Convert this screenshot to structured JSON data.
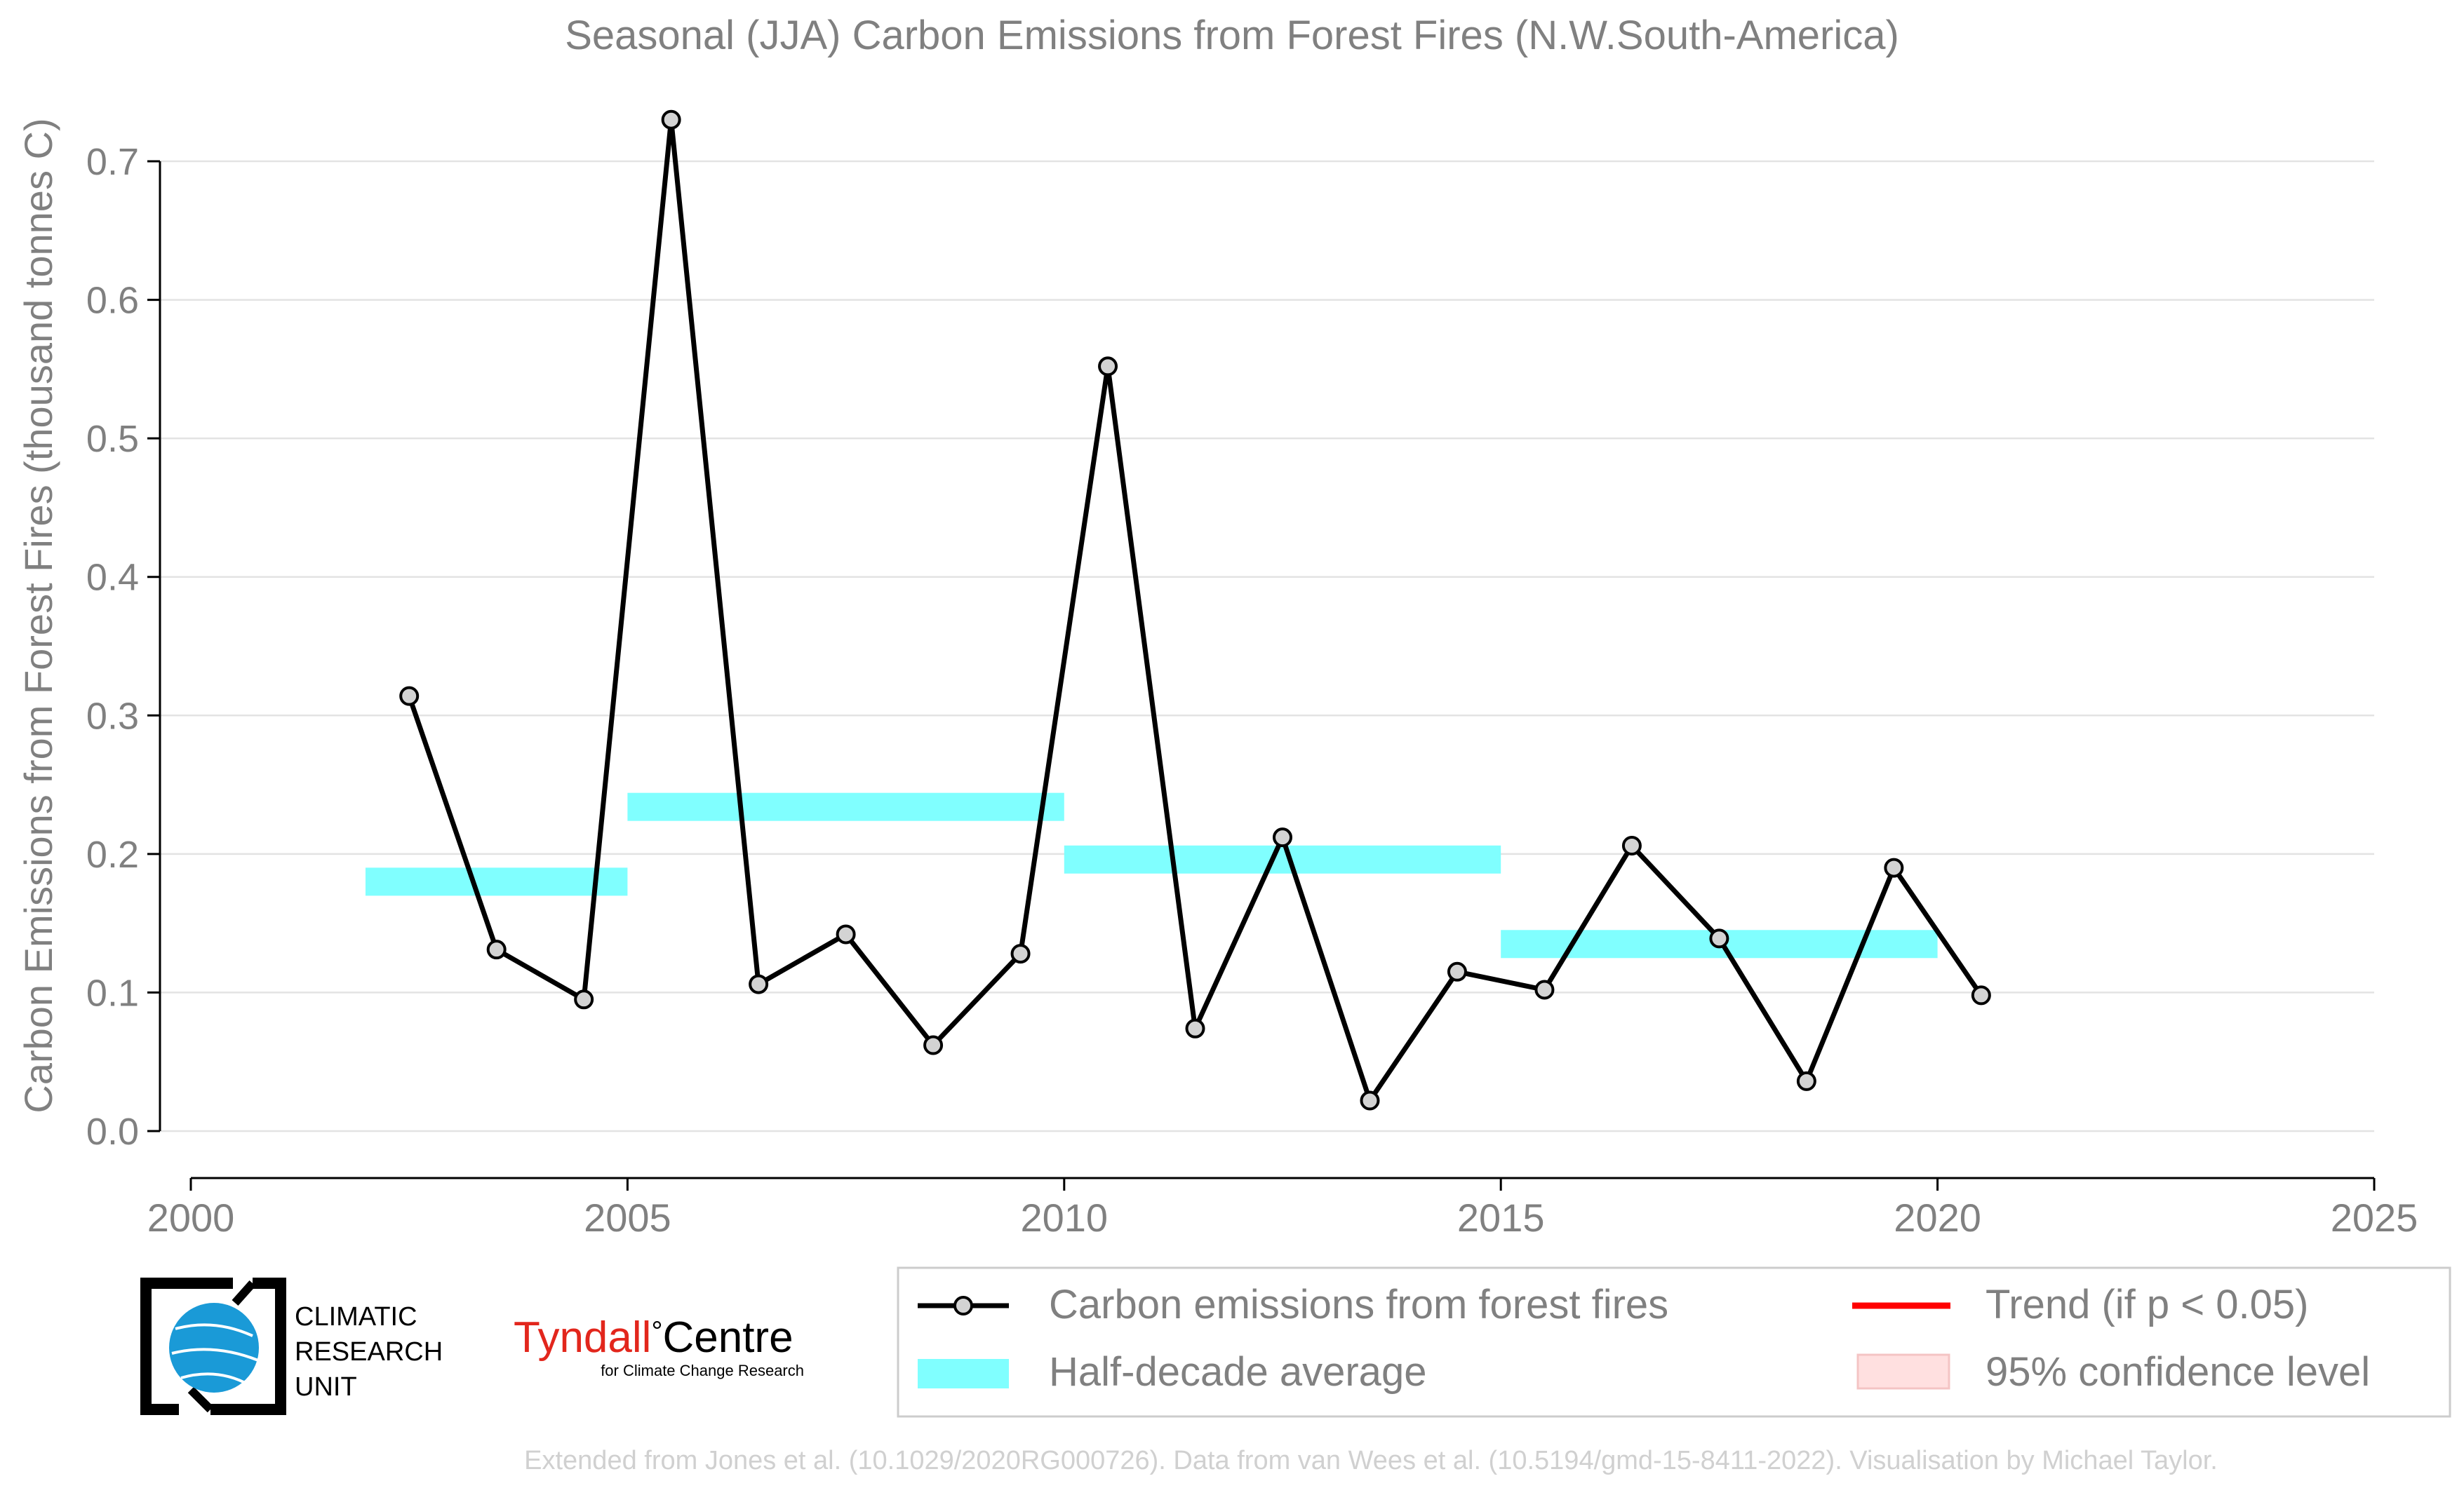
{
  "chart_data": {
    "type": "line",
    "title": "Seasonal (JJA) Carbon Emissions from Forest Fires (N.W.South-America)",
    "ylabel": "Carbon Emissions from Forest Fires (thousand tonnes C)",
    "xlabel": "",
    "xlim": [
      2000,
      2025
    ],
    "ylim": [
      0.0,
      0.7
    ],
    "x_ticks": [
      2000,
      2005,
      2010,
      2015,
      2020,
      2025
    ],
    "y_ticks": [
      0.0,
      0.1,
      0.2,
      0.3,
      0.4,
      0.5,
      0.6,
      0.7
    ],
    "y_tick_labels": [
      "0.0",
      "0.1",
      "0.2",
      "0.3",
      "0.4",
      "0.5",
      "0.6",
      "0.7"
    ],
    "grid": "horizontal",
    "legend_position": "bottom-right",
    "series": [
      {
        "name": "Carbon emissions from forest fires",
        "color": "#000000",
        "marker_fill": "#d3d3d3",
        "x": [
          2002.5,
          2003.5,
          2004.5,
          2005.5,
          2006.5,
          2007.5,
          2008.5,
          2009.5,
          2010.5,
          2011.5,
          2012.5,
          2013.5,
          2014.5,
          2015.5,
          2016.5,
          2017.5,
          2018.5,
          2019.5,
          2020.5
        ],
        "y": [
          0.314,
          0.131,
          0.095,
          0.73,
          0.106,
          0.142,
          0.062,
          0.128,
          0.552,
          0.074,
          0.212,
          0.022,
          0.115,
          0.102,
          0.206,
          0.139,
          0.036,
          0.19,
          0.098
        ]
      }
    ],
    "half_decade_average": {
      "name": "Half-decade average",
      "color": "#80ffff",
      "segments": [
        {
          "x_start": 2002,
          "x_end": 2005,
          "y": 0.18
        },
        {
          "x_start": 2005,
          "x_end": 2010,
          "y": 0.234
        },
        {
          "x_start": 2010,
          "x_end": 2015,
          "y": 0.196
        },
        {
          "x_start": 2015,
          "x_end": 2020,
          "y": 0.135
        }
      ]
    },
    "legend": [
      {
        "label": "Carbon emissions from forest fires",
        "kind": "line-marker",
        "color": "#000000"
      },
      {
        "label": "Trend (if p < 0.05)",
        "kind": "line",
        "color": "#ff0000"
      },
      {
        "label": "Half-decade average",
        "kind": "band",
        "color": "#80ffff"
      },
      {
        "label": "95% confidence level",
        "kind": "patch",
        "color": "#ffe0e0"
      }
    ],
    "footer": "Extended from Jones et al. (10.1029/2020RG000726). Data from van Wees et al. (10.5194/gmd-15-8411-2022). Visualisation by Michael Taylor."
  },
  "logos": {
    "cru_text": [
      "CLIMATIC",
      "RESEARCH",
      "UNIT"
    ],
    "tyndall_main": "Tyndall",
    "tyndall_degree": "°",
    "tyndall_centre": "Centre",
    "tyndall_sub": "for Climate Change Research"
  },
  "colors": {
    "text_gray": "#808080",
    "grid": "#e3e3e3",
    "footer": "#d0d0d0",
    "tyndall_red": "#e2261c",
    "cru_blue": "#1a9ad7"
  }
}
